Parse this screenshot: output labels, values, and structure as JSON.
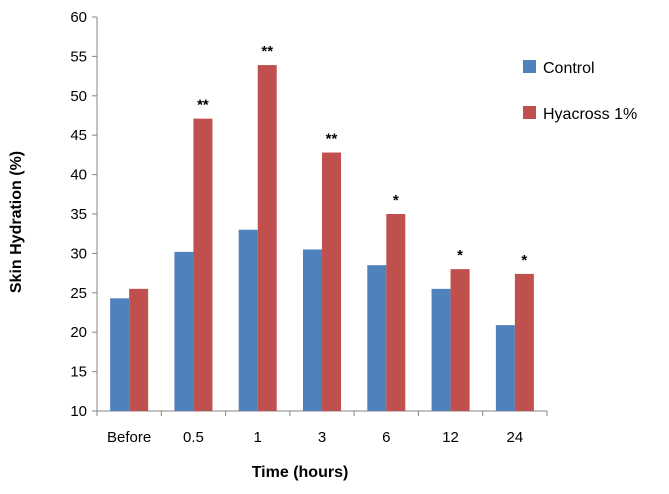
{
  "chart_data": {
    "type": "bar",
    "title": "",
    "xlabel": "Time (hours)",
    "ylabel": "Skin Hydration (%)",
    "ylim": [
      10,
      60
    ],
    "yticks": [
      10,
      15,
      20,
      25,
      30,
      35,
      40,
      45,
      50,
      55,
      60
    ],
    "categories": [
      "Before",
      "0.5",
      "1",
      "3",
      "6",
      "12",
      "24"
    ],
    "series": [
      {
        "name": "Control",
        "color": "#4F81BD",
        "values": [
          24.3,
          30.2,
          33.0,
          30.5,
          28.5,
          25.5,
          20.9
        ]
      },
      {
        "name": "Hyacross 1%",
        "color": "#C0504D",
        "values": [
          25.5,
          47.1,
          53.9,
          42.8,
          35.0,
          28.0,
          27.4
        ]
      }
    ],
    "annotations": [
      "",
      "**",
      "**",
      "**",
      "*",
      "*",
      "*"
    ],
    "grid": false,
    "legend": "right"
  }
}
